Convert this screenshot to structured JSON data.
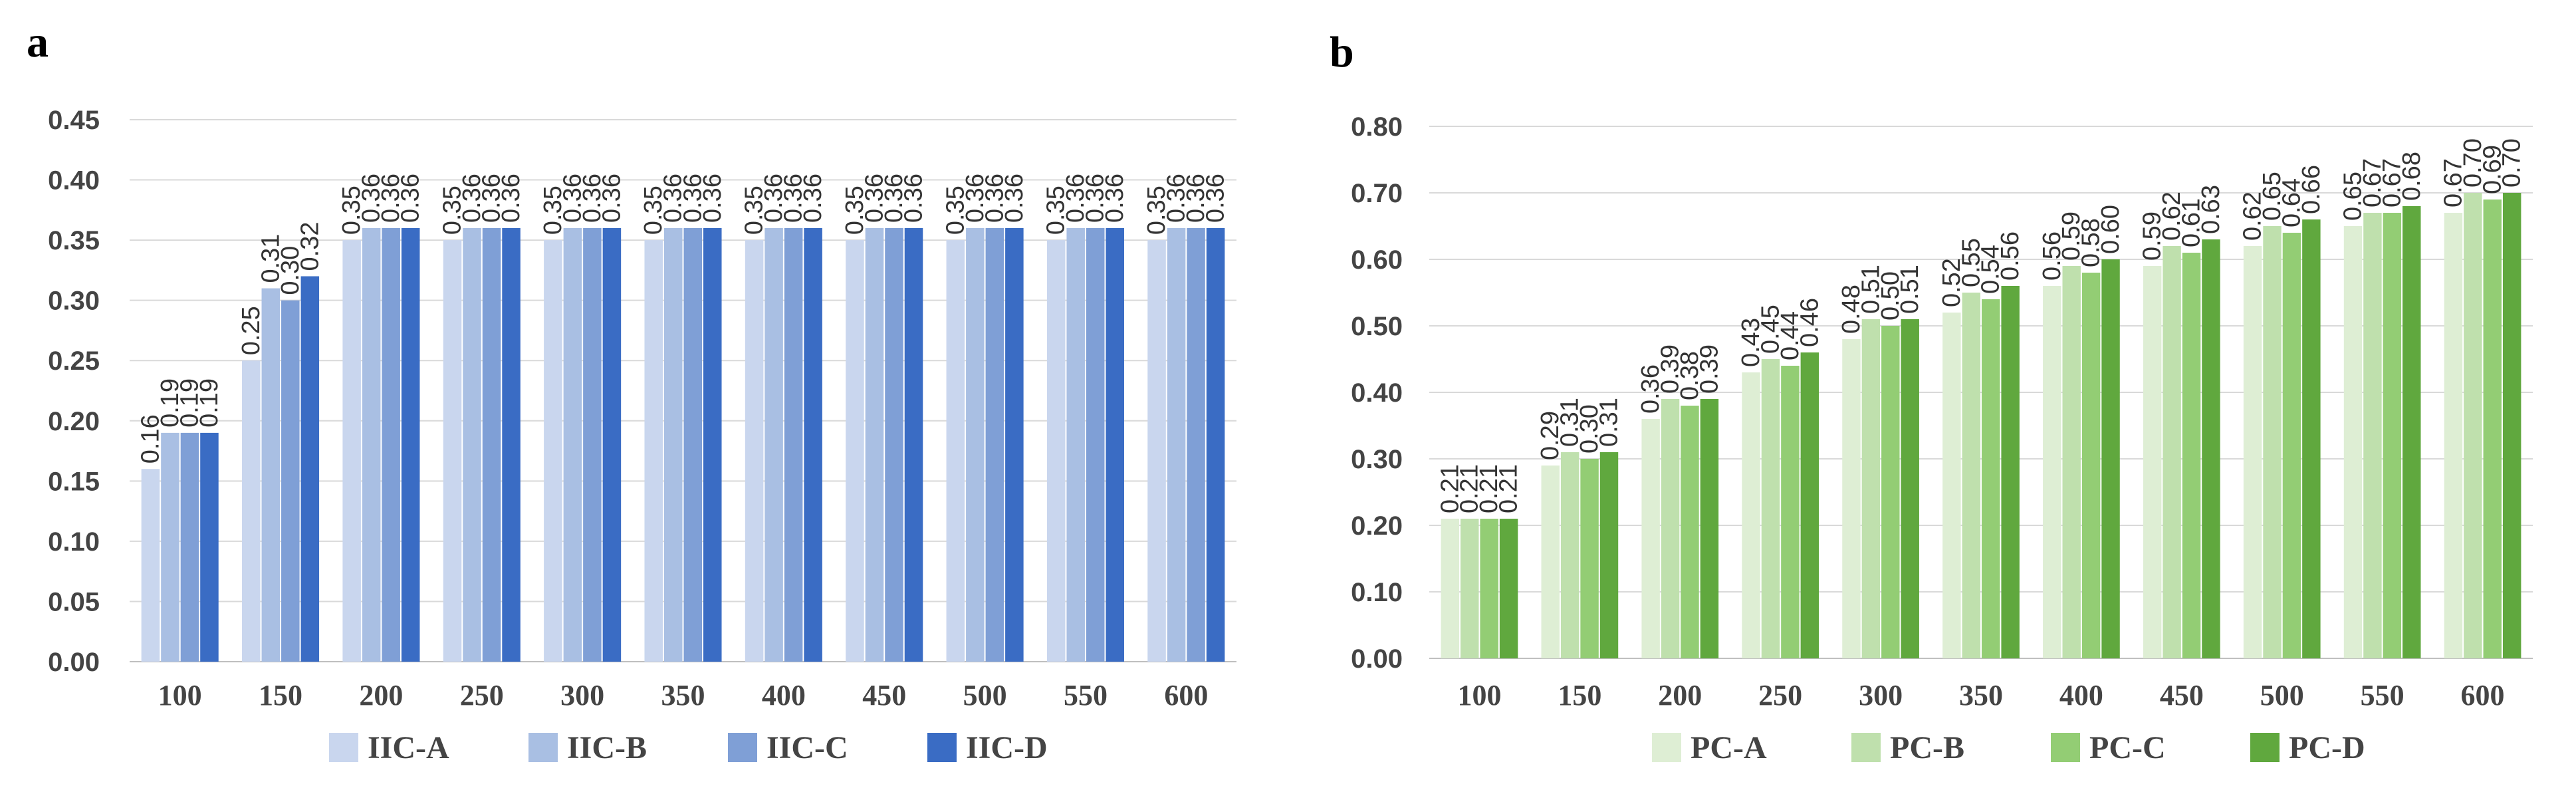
{
  "chart_data": [
    {
      "panel": "a",
      "type": "bar",
      "categories": [
        "100",
        "150",
        "200",
        "250",
        "300",
        "350",
        "400",
        "450",
        "500",
        "550",
        "600"
      ],
      "ylim": [
        0,
        0.45
      ],
      "yticks": [
        "0.00",
        "0.05",
        "0.10",
        "0.15",
        "0.20",
        "0.25",
        "0.30",
        "0.35",
        "0.40",
        "0.45"
      ],
      "grid": true,
      "legend_position": "bottom",
      "series": [
        {
          "name": "IIC-A",
          "color": "#c9d6ee",
          "values": [
            0.16,
            0.25,
            0.35,
            0.35,
            0.35,
            0.35,
            0.35,
            0.35,
            0.35,
            0.35,
            0.35
          ],
          "labels": [
            "0.16",
            "0.25",
            "0.35",
            "0.35",
            "0.35",
            "0.35",
            "0.35",
            "0.35",
            "0.35",
            "0.35",
            "0.35"
          ]
        },
        {
          "name": "IIC-B",
          "color": "#a9bfe3",
          "values": [
            0.19,
            0.31,
            0.36,
            0.36,
            0.36,
            0.36,
            0.36,
            0.36,
            0.36,
            0.36,
            0.36
          ],
          "labels": [
            "0.19",
            "0.31",
            "0.36",
            "0.36",
            "0.36",
            "0.36",
            "0.36",
            "0.36",
            "0.36",
            "0.36",
            "0.36"
          ]
        },
        {
          "name": "IIC-C",
          "color": "#7f9fd6",
          "values": [
            0.19,
            0.3,
            0.36,
            0.36,
            0.36,
            0.36,
            0.36,
            0.36,
            0.36,
            0.36,
            0.36
          ],
          "labels": [
            "0.19",
            "0.30",
            "0.36",
            "0.36",
            "0.36",
            "0.36",
            "0.36",
            "0.36",
            "0.36",
            "0.36",
            "0.36"
          ]
        },
        {
          "name": "IIC-D",
          "color": "#3a6cc4",
          "values": [
            0.19,
            0.32,
            0.36,
            0.36,
            0.36,
            0.36,
            0.36,
            0.36,
            0.36,
            0.36,
            0.36
          ],
          "labels": [
            "0.19",
            "0.32",
            "0.36",
            "0.36",
            "0.36",
            "0.36",
            "0.36",
            "0.36",
            "0.36",
            "0.36",
            "0.36"
          ]
        }
      ]
    },
    {
      "panel": "b",
      "type": "bar",
      "categories": [
        "100",
        "150",
        "200",
        "250",
        "300",
        "350",
        "400",
        "450",
        "500",
        "550",
        "600"
      ],
      "ylim": [
        0,
        0.8
      ],
      "yticks": [
        "0.00",
        "0.10",
        "0.20",
        "0.30",
        "0.40",
        "0.50",
        "0.60",
        "0.70",
        "0.80"
      ],
      "grid": true,
      "legend_position": "bottom",
      "series": [
        {
          "name": "PC-A",
          "color": "#deeed4",
          "values": [
            0.21,
            0.29,
            0.36,
            0.43,
            0.48,
            0.52,
            0.56,
            0.59,
            0.62,
            0.65,
            0.67
          ],
          "labels": [
            "0.21",
            "0.29",
            "0.36",
            "0.43",
            "0.48",
            "0.52",
            "0.56",
            "0.59",
            "0.62",
            "0.65",
            "0.67"
          ]
        },
        {
          "name": "PC-B",
          "color": "#bfe0ad",
          "values": [
            0.21,
            0.31,
            0.39,
            0.45,
            0.51,
            0.55,
            0.59,
            0.62,
            0.65,
            0.67,
            0.7
          ],
          "labels": [
            "0.21",
            "0.31",
            "0.39",
            "0.45",
            "0.51",
            "0.55",
            "0.59",
            "0.62",
            "0.65",
            "0.67",
            "0.70"
          ]
        },
        {
          "name": "PC-C",
          "color": "#93cd74",
          "values": [
            0.21,
            0.3,
            0.38,
            0.44,
            0.5,
            0.54,
            0.58,
            0.61,
            0.64,
            0.67,
            0.69
          ],
          "labels": [
            "0.21",
            "0.30",
            "0.38",
            "0.44",
            "0.50",
            "0.54",
            "0.58",
            "0.61",
            "0.64",
            "0.67",
            "0.69"
          ]
        },
        {
          "name": "PC-D",
          "color": "#60a83e",
          "values": [
            0.21,
            0.31,
            0.39,
            0.46,
            0.51,
            0.56,
            0.6,
            0.63,
            0.66,
            0.68,
            0.7
          ],
          "labels": [
            "0.21",
            "0.31",
            "0.39",
            "0.46",
            "0.51",
            "0.56",
            "0.60",
            "0.63",
            "0.66",
            "0.68",
            "0.70"
          ]
        }
      ]
    }
  ]
}
